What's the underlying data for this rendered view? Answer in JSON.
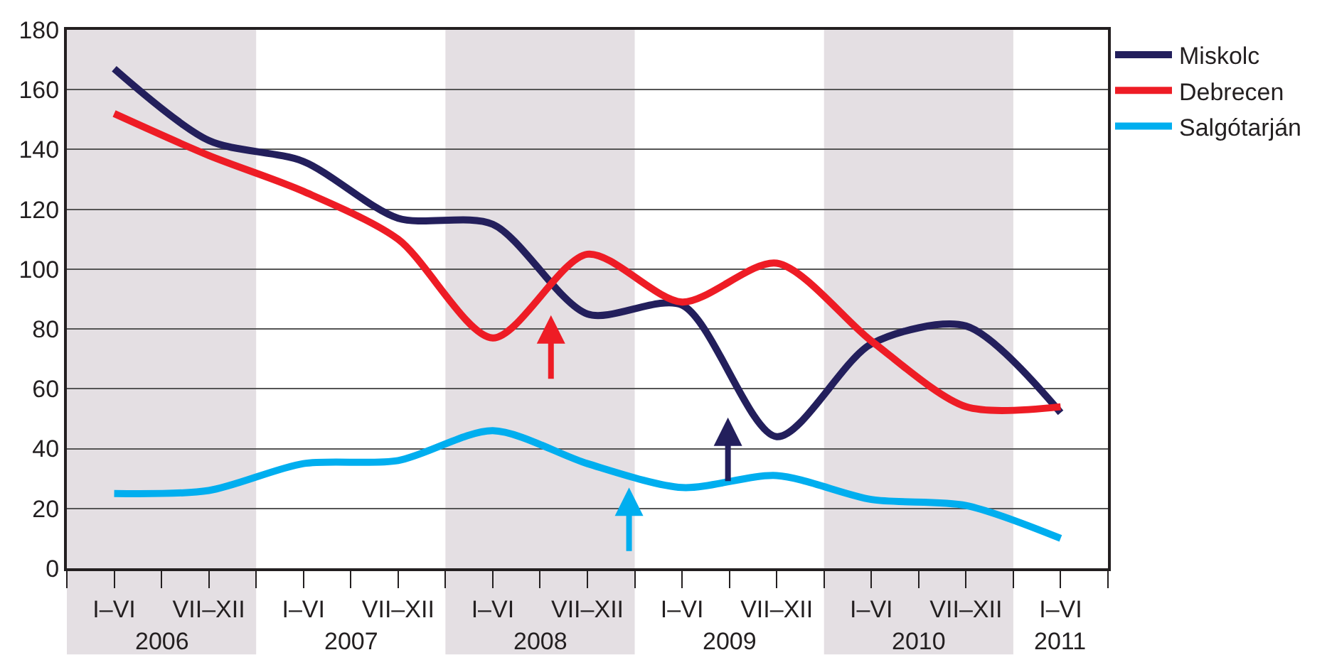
{
  "chart_data": {
    "type": "line",
    "categories": [
      "I–VI",
      "VII–XII",
      "I–VI",
      "VII–XII",
      "I–VI",
      "VII–XII",
      "I–VI",
      "VII–XII",
      "I–VI",
      "VII–XII",
      "I–VI"
    ],
    "series": [
      {
        "name": "Miskolc",
        "color": "#231f5c",
        "values": [
          167,
          143,
          136,
          117,
          115,
          85,
          88,
          44,
          75,
          81,
          52
        ]
      },
      {
        "name": "Debrecen",
        "color": "#ee1c25",
        "values": [
          152,
          138,
          126,
          110,
          77,
          105,
          89,
          102,
          76,
          54,
          54
        ]
      },
      {
        "name": "Salgótarján",
        "color": "#00aeef",
        "values": [
          25,
          26,
          35,
          36,
          46,
          35,
          27,
          31,
          23,
          21,
          10
        ]
      }
    ],
    "ylim": [
      0,
      180
    ],
    "yticks": [
      0,
      20,
      40,
      60,
      80,
      100,
      120,
      140,
      160,
      180
    ],
    "grid": "y",
    "legend": "top right",
    "line_style": "solid",
    "annotations": [
      "2006",
      "2007",
      "2008",
      "2009",
      "2010",
      "2011"
    ]
  }
}
